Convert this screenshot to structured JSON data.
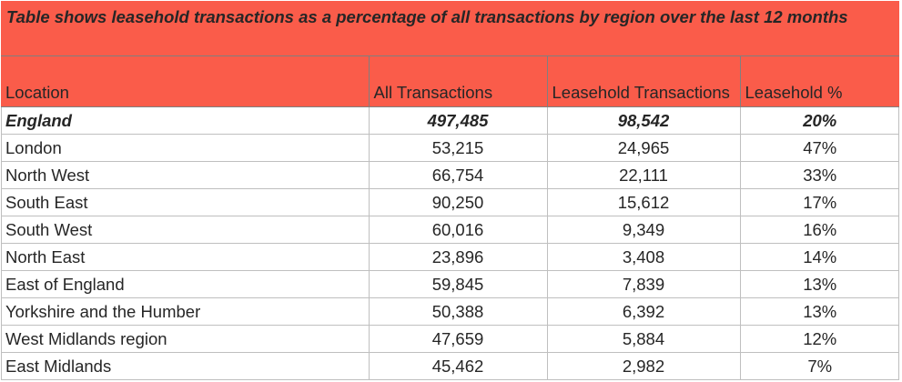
{
  "title": "Table shows leasehold transactions as a percentage of all transactions by region over the last 12 months",
  "columns": [
    "Location",
    "All Transactions",
    "Leasehold Transactions",
    "Leasehold %"
  ],
  "rows": [
    {
      "location": "England",
      "all": "497,485",
      "leasehold": "98,542",
      "pct": "20%"
    },
    {
      "location": "London",
      "all": "53,215",
      "leasehold": "24,965",
      "pct": "47%"
    },
    {
      "location": "North West",
      "all": "66,754",
      "leasehold": "22,111",
      "pct": "33%"
    },
    {
      "location": "South East",
      "all": "90,250",
      "leasehold": "15,612",
      "pct": "17%"
    },
    {
      "location": "South West",
      "all": "60,016",
      "leasehold": "9,349",
      "pct": "16%"
    },
    {
      "location": "North East",
      "all": "23,896",
      "leasehold": "3,408",
      "pct": "14%"
    },
    {
      "location": "East of England",
      "all": "59,845",
      "leasehold": "7,839",
      "pct": "13%"
    },
    {
      "location": "Yorkshire and the Humber",
      "all": "50,388",
      "leasehold": "6,392",
      "pct": "13%"
    },
    {
      "location": "West Midlands region",
      "all": "47,659",
      "leasehold": "5,884",
      "pct": "12%"
    },
    {
      "location": "East Midlands",
      "all": "45,462",
      "leasehold": "2,982",
      "pct": "7%"
    }
  ],
  "colors": {
    "header_bg": "#fa5c4a",
    "text": "#262626",
    "grid": "#bfbfbf"
  }
}
